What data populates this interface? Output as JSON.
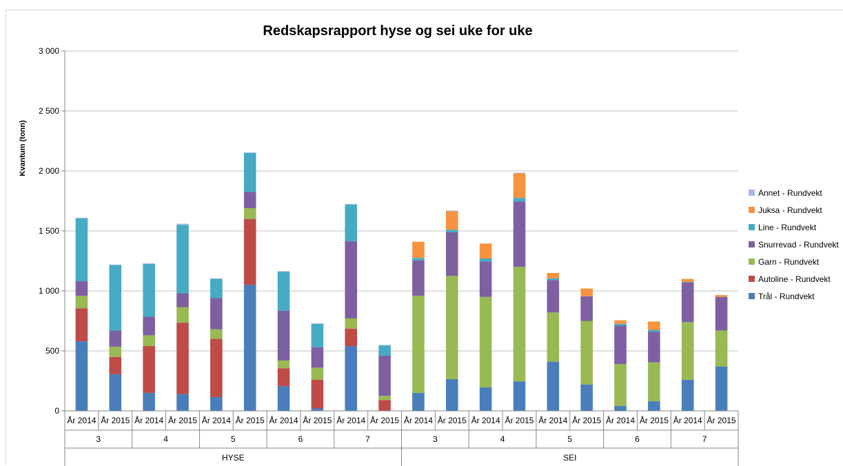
{
  "chart_data": {
    "type": "bar",
    "stacked": true,
    "title": "Redskapsrapport hyse og sei uke for uke",
    "ylabel": "Kvantum (tonn)",
    "ylim": [
      0,
      3000
    ],
    "yticks": [
      0,
      500,
      1000,
      1500,
      2000,
      2500,
      3000
    ],
    "ytick_labels": [
      "0",
      "500",
      "1 000",
      "1 500",
      "2 000",
      "2 500",
      "3 000"
    ],
    "grid": true,
    "legend_position": "right",
    "groups": [
      {
        "label": "HYSE",
        "weeks": [
          "3",
          "4",
          "5",
          "6",
          "7"
        ]
      },
      {
        "label": "SEI",
        "weeks": [
          "3",
          "4",
          "5",
          "6",
          "7"
        ]
      }
    ],
    "categories": [
      "År 2014",
      "År 2015",
      "År 2014",
      "År 2015",
      "År 2014",
      "År 2015",
      "År 2014",
      "År 2015",
      "År 2014",
      "År 2015",
      "År 2014",
      "År 2015",
      "År 2014",
      "År 2015",
      "År 2014",
      "År 2015",
      "År 2014",
      "År 2015",
      "År 2014",
      "År 2015"
    ],
    "series": [
      {
        "name": "Trål - Rundvekt",
        "color": "#4a7ebb",
        "values": [
          580,
          305,
          150,
          140,
          115,
          1050,
          205,
          20,
          540,
          0,
          150,
          265,
          195,
          245,
          410,
          220,
          40,
          80,
          260,
          370
        ]
      },
      {
        "name": "Autoline - Rundvekt",
        "color": "#be4b48",
        "values": [
          275,
          145,
          390,
          595,
          485,
          550,
          150,
          240,
          145,
          90,
          0,
          0,
          0,
          0,
          0,
          0,
          0,
          0,
          0,
          0
        ]
      },
      {
        "name": "Garn - Rundvekt",
        "color": "#98b954",
        "values": [
          105,
          85,
          90,
          130,
          80,
          90,
          65,
          100,
          85,
          35,
          810,
          860,
          755,
          955,
          410,
          530,
          350,
          325,
          480,
          300
        ]
      },
      {
        "name": "Snurrevad - Rundvekt",
        "color": "#7d60a0",
        "values": [
          120,
          135,
          155,
          115,
          260,
          135,
          415,
          170,
          645,
          335,
          295,
          365,
          295,
          545,
          270,
          205,
          320,
          255,
          330,
          280
        ]
      },
      {
        "name": "Line - Rundvekt",
        "color": "#46aac5",
        "values": [
          525,
          545,
          440,
          570,
          160,
          325,
          325,
          195,
          305,
          85,
          20,
          20,
          25,
          30,
          15,
          0,
          15,
          15,
          5,
          0
        ]
      },
      {
        "name": "Juksa - Rundvekt",
        "color": "#f69240",
        "values": [
          0,
          0,
          0,
          0,
          0,
          0,
          0,
          0,
          0,
          0,
          135,
          155,
          125,
          205,
          45,
          65,
          30,
          70,
          25,
          15
        ]
      },
      {
        "name": "Annet - Rundvekt",
        "color": "#a5b9e0",
        "values": [
          5,
          5,
          5,
          10,
          5,
          5,
          5,
          5,
          5,
          5,
          0,
          5,
          0,
          5,
          0,
          0,
          0,
          0,
          0,
          0
        ]
      }
    ]
  }
}
